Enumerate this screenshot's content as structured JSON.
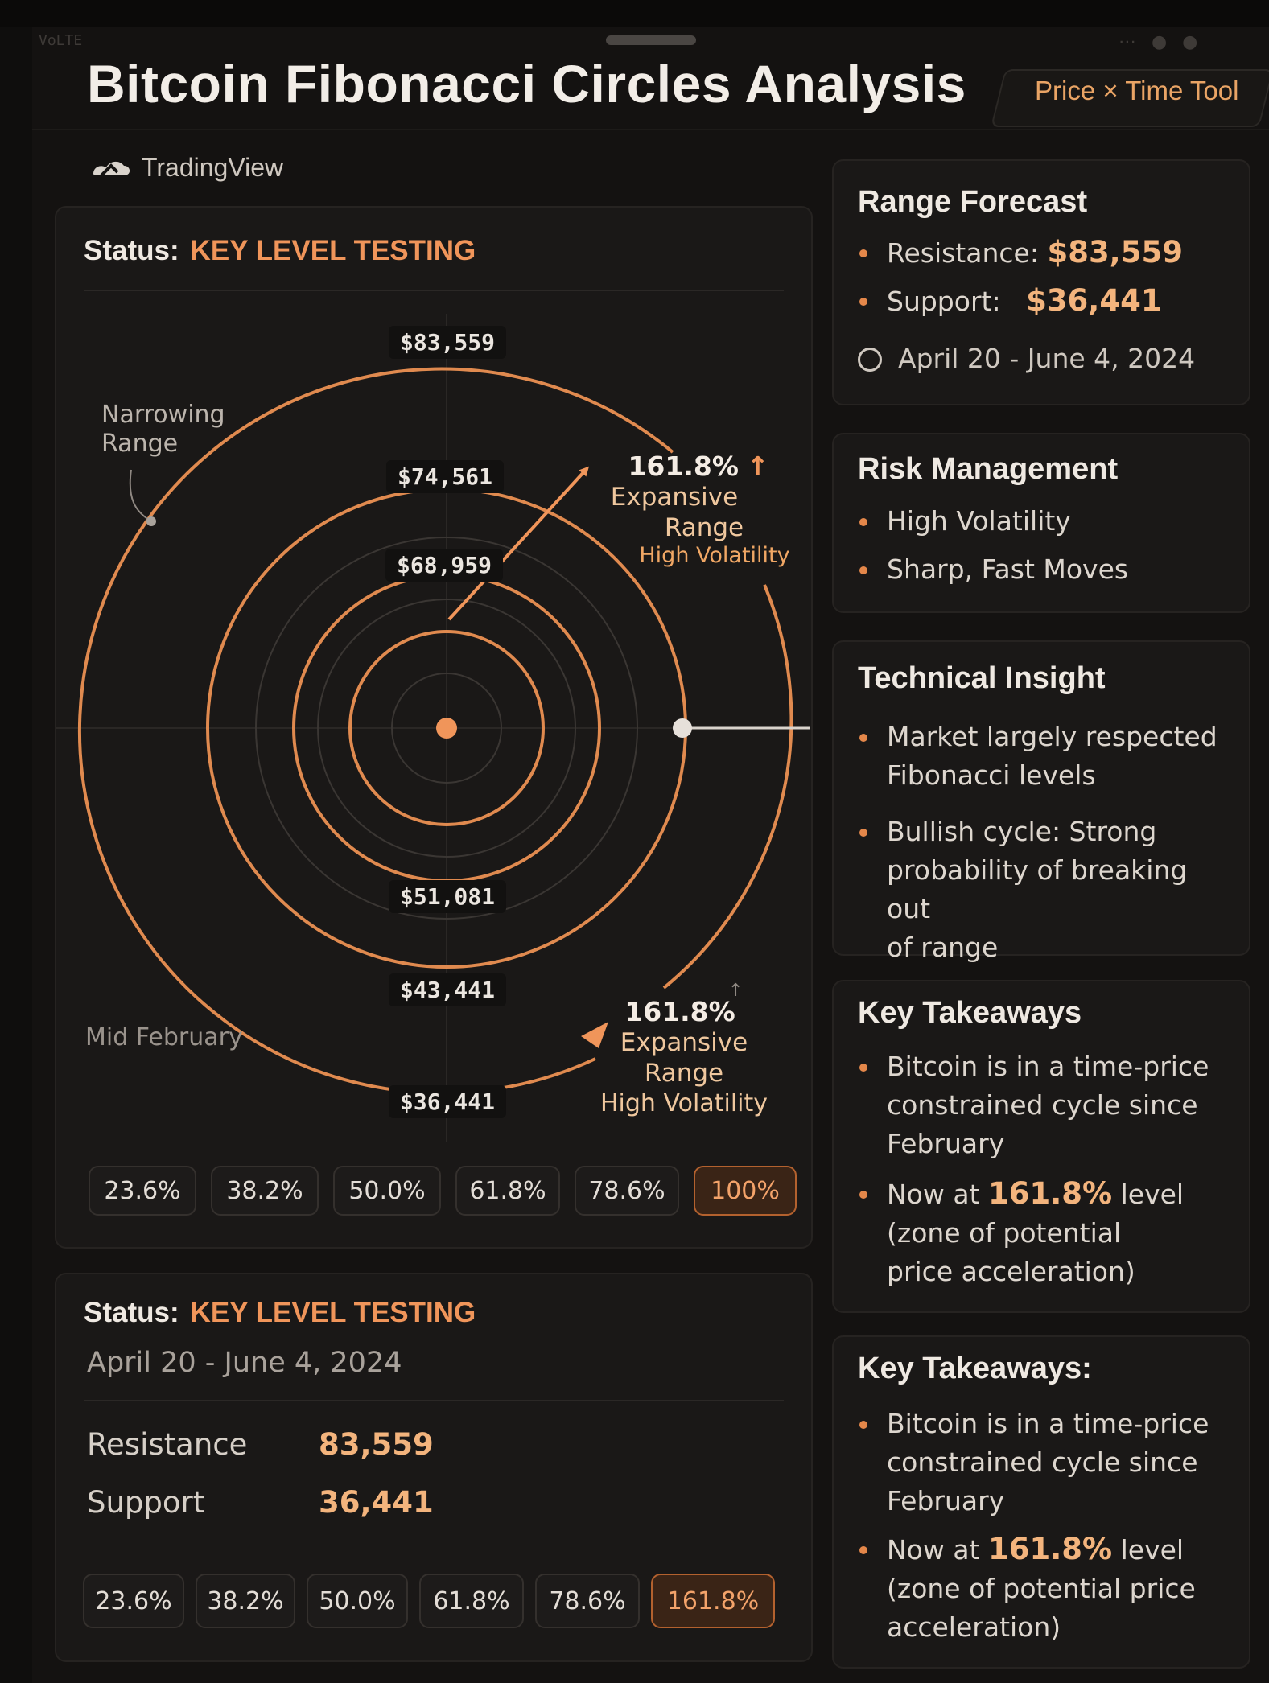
{
  "header": {
    "title": "Bitcoin Fibonacci Circles Analysis",
    "tool_tag": "Price × Time Tool",
    "brand": "TradingView"
  },
  "status_bar": {
    "carrier": "VoLTE"
  },
  "chart_panel": {
    "status_label": "Status:",
    "status_value": "KEY LEVEL TESTING",
    "price_levels": [
      "$83,559",
      "$74,561",
      "$68,959",
      "$51,081",
      "$43,441",
      "$36,441"
    ],
    "labels": {
      "narrowing_line1": "Narrowing",
      "narrowing_line2": "Range",
      "mid_february": "Mid February"
    },
    "annotation_top": {
      "pct": "161.8%",
      "line1": "Expansive",
      "line2": "Range",
      "line3": "High Volatility"
    },
    "annotation_bottom": {
      "pct": "161.8%",
      "line1": "Expansive",
      "line2": "Range",
      "line3": "High Volatility"
    },
    "fib_chips": [
      "23.6%",
      "38.2%",
      "50.0%",
      "61.8%",
      "78.6%",
      "100%"
    ],
    "active_chip": "100%",
    "arrow_glyph": "↑"
  },
  "bottom_panel": {
    "status_label": "Status:",
    "status_value": "KEY LEVEL TESTING",
    "date_range": "April 20 - June 4, 2024",
    "resistance_label": "Resistance",
    "resistance_value": "83,559",
    "support_label": "Support",
    "support_value": "36,441",
    "fib_chips": [
      "23.6%",
      "38.2%",
      "50.0%",
      "61.8%",
      "78.6%",
      "161.8%"
    ],
    "active_chip": "161.8%"
  },
  "range_forecast": {
    "title": "Range Forecast",
    "resistance_label": "Resistance:",
    "resistance_value": "$83,559",
    "support_label": "Support:",
    "support_value": "$36,441",
    "date_range": "April 20 - June 4, 2024"
  },
  "risk_management": {
    "title": "Risk Management",
    "items": [
      "High Volatility",
      "Sharp, Fast Moves"
    ]
  },
  "technical_insight": {
    "title": "Technical Insight",
    "items": [
      [
        "Market largely respected",
        "Fibonacci levels"
      ],
      [
        "Bullish cycle: Strong",
        "probability of breaking out",
        "of range"
      ]
    ]
  },
  "key_takeaways_1": {
    "title": "Key Takeaways",
    "item1": [
      "Bitcoin is in a time-price",
      "constrained cycle since",
      "February"
    ],
    "item2_pre": "Now at ",
    "item2_hl": "161.8%",
    "item2_post": " level",
    "item2_rest": [
      "(zone of potential",
      "price acceleration)"
    ]
  },
  "key_takeaways_2": {
    "title": "Key Takeaways:",
    "item1": [
      "Bitcoin is in a time-price",
      "constrained cycle since",
      "February"
    ],
    "item2_pre": "Now at ",
    "item2_hl": "161.8%",
    "item2_post": " level",
    "item2_rest": [
      "(zone of potential price",
      "acceleration)"
    ]
  },
  "colors": {
    "accent": "#f0955a",
    "ring_bright": "#e08a4f",
    "ring_dim": "#3a3633",
    "background": "#141211"
  }
}
